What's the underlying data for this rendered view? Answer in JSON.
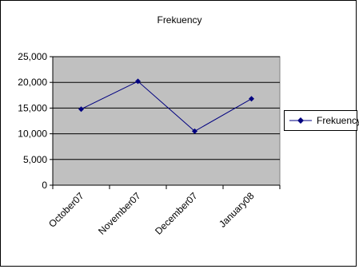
{
  "chart_data": {
    "type": "line",
    "title": "Frekuency",
    "categories": [
      "October07",
      "November07",
      "December07",
      "January08"
    ],
    "series": [
      {
        "name": "Frekuency",
        "values": [
          14800,
          20200,
          10500,
          16800
        ]
      }
    ],
    "ylim": [
      0,
      25000
    ],
    "yticks": [
      "0",
      "5,000",
      "10,000",
      "15,000",
      "20,000",
      "25,000"
    ],
    "grid": true,
    "legend": "right",
    "colors": {
      "plot_area": "#c0c0c0",
      "series_line": "#000080",
      "grid": "#000000"
    }
  }
}
